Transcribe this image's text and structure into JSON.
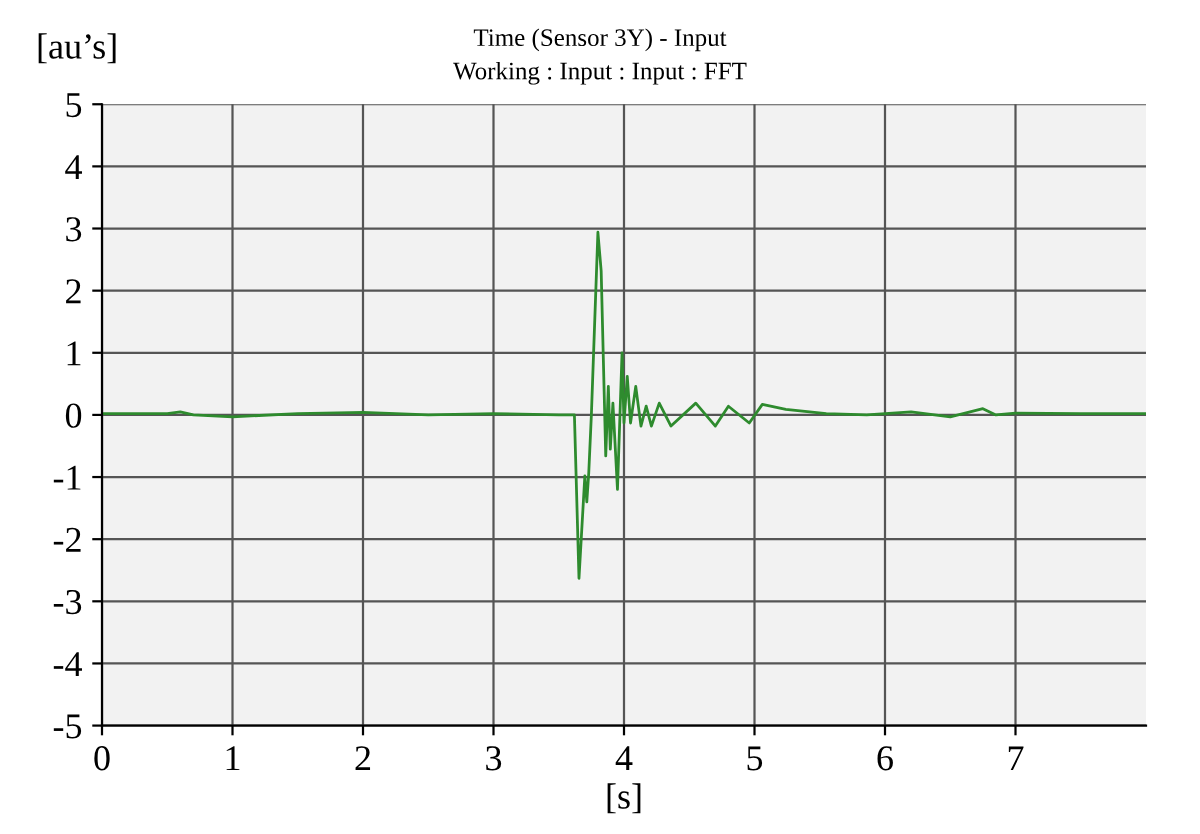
{
  "chart_data": {
    "type": "line",
    "title": "Time (Sensor 3Y) - Input",
    "subtitle": "Working : Input : Input : FFT",
    "xlabel": "[s]",
    "ylabel": "[au’s]",
    "series": [
      {
        "color": "#2e8b2e",
        "x": [
          0,
          0.5,
          0.6,
          0.7,
          1.0,
          1.5,
          2.0,
          2.5,
          3.0,
          3.5,
          3.62,
          3.655,
          3.7,
          3.715,
          3.73,
          3.75,
          3.8,
          3.825,
          3.86,
          3.88,
          3.895,
          3.915,
          3.95,
          3.985,
          4.0,
          4.025,
          4.05,
          4.09,
          4.13,
          4.17,
          4.21,
          4.27,
          4.36,
          4.55,
          4.7,
          4.8,
          4.96,
          5.06,
          5.24,
          5.55,
          5.86,
          6.2,
          6.5,
          6.75,
          6.85,
          7.0,
          7.5,
          8.0
        ],
        "values": [
          0.02,
          0.02,
          0.05,
          0.0,
          -0.03,
          0.02,
          0.04,
          0.0,
          0.02,
          0.0,
          0.0,
          -2.63,
          -0.98,
          -1.4,
          -0.93,
          0.0,
          2.94,
          2.32,
          -0.66,
          0.46,
          -0.55,
          0.19,
          -1.2,
          1.0,
          -0.13,
          0.62,
          -0.13,
          0.46,
          -0.18,
          0.14,
          -0.18,
          0.19,
          -0.18,
          0.19,
          -0.18,
          0.14,
          -0.13,
          0.17,
          0.09,
          0.02,
          0.0,
          0.05,
          -0.03,
          0.1,
          0.0,
          0.03,
          0.02,
          0.02
        ]
      }
    ],
    "xlim": [
      0,
      8
    ],
    "ylim": [
      -5,
      5
    ],
    "xticks": [
      0,
      1,
      2,
      3,
      4,
      5,
      6,
      7
    ],
    "yticks": [
      -5,
      -4,
      -3,
      -2,
      -1,
      0,
      1,
      2,
      3,
      4,
      5
    ],
    "grid": true,
    "legend": false
  }
}
